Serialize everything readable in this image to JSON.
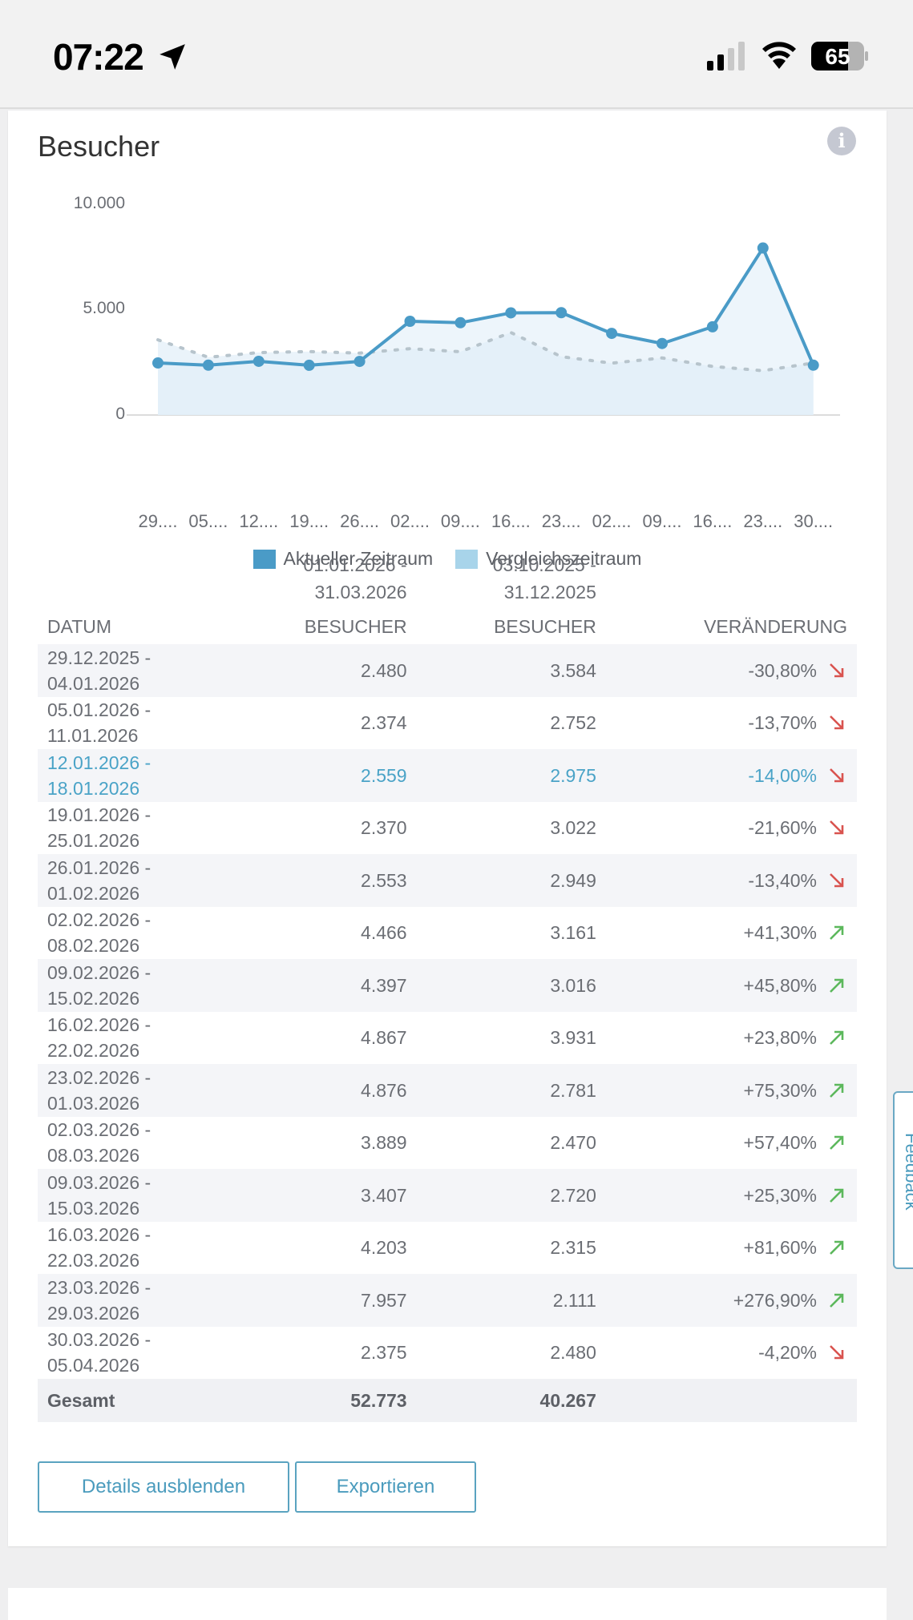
{
  "status_bar": {
    "time": "07:22",
    "battery": "65"
  },
  "card": {
    "title": "Besucher",
    "info_icon": "info-icon"
  },
  "chart_data": {
    "type": "line",
    "title": "Besucher",
    "y_ticks": [
      "10.000",
      "5.000",
      "0"
    ],
    "ylim": [
      0,
      10000
    ],
    "categories": [
      "29....",
      "05....",
      "12....",
      "19....",
      "26....",
      "02....",
      "09....",
      "16....",
      "23....",
      "02....",
      "09....",
      "16....",
      "23....",
      "30...."
    ],
    "series": [
      {
        "name": "Aktueller Zeitraum",
        "color": "#4a9bc7",
        "values": [
          2480,
          2374,
          2559,
          2370,
          2553,
          4466,
          4397,
          4867,
          4876,
          3889,
          3407,
          4203,
          7957,
          2375
        ]
      },
      {
        "name": "Vergleichszeitraum",
        "color": "#a8d4ea",
        "values": [
          3584,
          2752,
          2975,
          3022,
          2949,
          3161,
          3016,
          3931,
          2781,
          2470,
          2720,
          2315,
          2111,
          2480
        ]
      }
    ],
    "legend": [
      "Aktueller Zeitraum",
      "Vergleichszeitraum"
    ],
    "legend_position": "bottom"
  },
  "table": {
    "period_current": [
      "01.01.2026 -",
      "31.03.2026"
    ],
    "period_compare": [
      "03.10.2025 -",
      "31.12.2025"
    ],
    "headers": {
      "date": "DATUM",
      "current": "BESUCHER",
      "compare": "BESUCHER",
      "change": "VERÄNDERUNG"
    },
    "rows": [
      {
        "from": "29.12.2025 -",
        "to": "04.01.2026",
        "current": "2.480",
        "compare": "3.584",
        "change": "-30,80%",
        "trend": "down"
      },
      {
        "from": "05.01.2026 -",
        "to": "11.01.2026",
        "current": "2.374",
        "compare": "2.752",
        "change": "-13,70%",
        "trend": "down"
      },
      {
        "from": "12.01.2026 -",
        "to": "18.01.2026",
        "current": "2.559",
        "compare": "2.975",
        "change": "-14,00%",
        "trend": "down",
        "highlighted": true
      },
      {
        "from": "19.01.2026 -",
        "to": "25.01.2026",
        "current": "2.370",
        "compare": "3.022",
        "change": "-21,60%",
        "trend": "down"
      },
      {
        "from": "26.01.2026 -",
        "to": "01.02.2026",
        "current": "2.553",
        "compare": "2.949",
        "change": "-13,40%",
        "trend": "down"
      },
      {
        "from": "02.02.2026 -",
        "to": "08.02.2026",
        "current": "4.466",
        "compare": "3.161",
        "change": "+41,30%",
        "trend": "up"
      },
      {
        "from": "09.02.2026 -",
        "to": "15.02.2026",
        "current": "4.397",
        "compare": "3.016",
        "change": "+45,80%",
        "trend": "up"
      },
      {
        "from": "16.02.2026 -",
        "to": "22.02.2026",
        "current": "4.867",
        "compare": "3.931",
        "change": "+23,80%",
        "trend": "up"
      },
      {
        "from": "23.02.2026 -",
        "to": "01.03.2026",
        "current": "4.876",
        "compare": "2.781",
        "change": "+75,30%",
        "trend": "up"
      },
      {
        "from": "02.03.2026 -",
        "to": "08.03.2026",
        "current": "3.889",
        "compare": "2.470",
        "change": "+57,40%",
        "trend": "up"
      },
      {
        "from": "09.03.2026 -",
        "to": "15.03.2026",
        "current": "3.407",
        "compare": "2.720",
        "change": "+25,30%",
        "trend": "up"
      },
      {
        "from": "16.03.2026 -",
        "to": "22.03.2026",
        "current": "4.203",
        "compare": "2.315",
        "change": "+81,60%",
        "trend": "up"
      },
      {
        "from": "23.03.2026 -",
        "to": "29.03.2026",
        "current": "7.957",
        "compare": "2.111",
        "change": "+276,90%",
        "trend": "up"
      },
      {
        "from": "30.03.2026 -",
        "to": "05.04.2026",
        "current": "2.375",
        "compare": "2.480",
        "change": "-4,20%",
        "trend": "down"
      }
    ],
    "total": {
      "label": "Gesamt",
      "current": "52.773",
      "compare": "40.267"
    }
  },
  "buttons": {
    "hide_details": "Details ausblenden",
    "export": "Exportieren"
  },
  "feedback_tab": "Feedback",
  "colors": {
    "accent": "#4a9bc7",
    "up": "#5cb85c",
    "down": "#d9534f",
    "highlight_text": "#4aa3c7"
  }
}
